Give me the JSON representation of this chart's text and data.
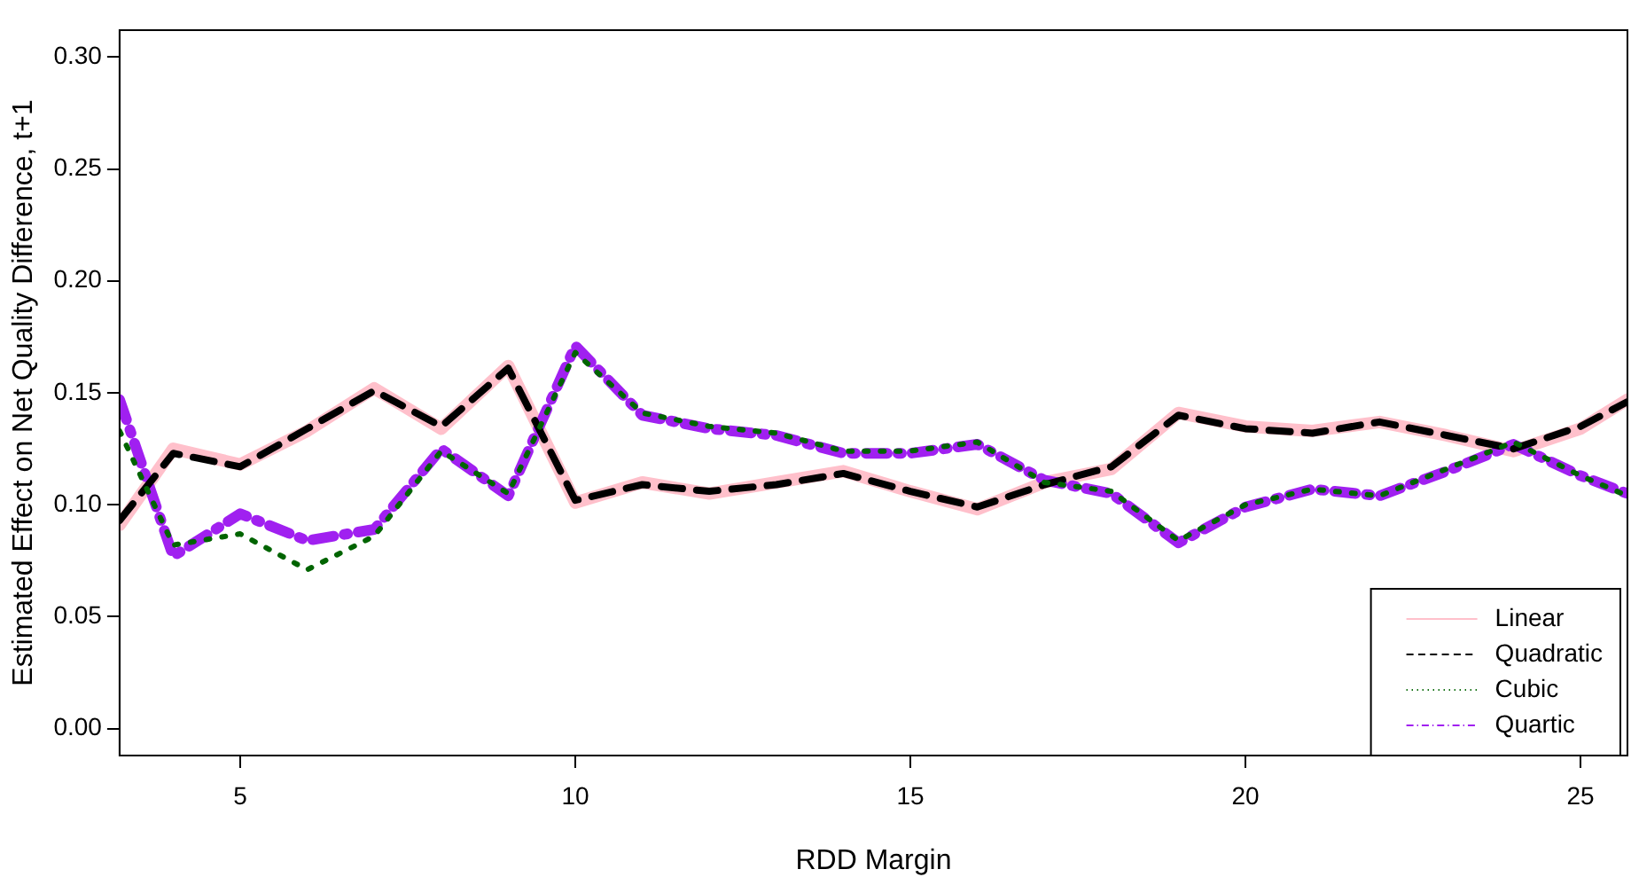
{
  "chart_data": {
    "type": "line",
    "xlabel": "RDD Margin",
    "ylabel": "Estimated Effect on Net Quality Difference, t+1",
    "x": [
      3.2,
      4,
      5,
      6,
      7,
      8,
      9,
      10,
      11,
      12,
      13,
      14,
      15,
      16,
      17,
      18,
      19,
      20,
      21,
      22,
      23,
      24,
      25,
      25.7
    ],
    "series": [
      {
        "name": "Linear",
        "color": "#ffc0cb",
        "line_style": "solid",
        "values": [
          0.091,
          0.125,
          0.118,
          0.133,
          0.152,
          0.134,
          0.162,
          0.101,
          0.11,
          0.105,
          0.11,
          0.115,
          0.106,
          0.098,
          0.11,
          0.116,
          0.141,
          0.135,
          0.133,
          0.137,
          0.131,
          0.124,
          0.134,
          0.147
        ]
      },
      {
        "name": "Quadratic",
        "color": "#000000",
        "line_style": "dashed",
        "values": [
          0.093,
          0.123,
          0.117,
          0.134,
          0.151,
          0.135,
          0.161,
          0.102,
          0.109,
          0.106,
          0.109,
          0.114,
          0.106,
          0.099,
          0.109,
          0.117,
          0.14,
          0.134,
          0.132,
          0.137,
          0.131,
          0.125,
          0.135,
          0.146
        ]
      },
      {
        "name": "Cubic",
        "color": "#006400",
        "line_style": "dotted",
        "values": [
          0.133,
          0.082,
          0.087,
          0.071,
          0.086,
          0.124,
          0.105,
          0.168,
          0.141,
          0.135,
          0.132,
          0.124,
          0.124,
          0.128,
          0.11,
          0.106,
          0.084,
          0.1,
          0.107,
          0.104,
          0.116,
          0.128,
          0.113,
          0.104
        ]
      },
      {
        "name": "Quartic",
        "color": "#a020f0",
        "line_style": "dashdot",
        "values": [
          0.147,
          0.077,
          0.096,
          0.084,
          0.089,
          0.125,
          0.104,
          0.171,
          0.14,
          0.134,
          0.131,
          0.123,
          0.123,
          0.127,
          0.111,
          0.105,
          0.083,
          0.099,
          0.107,
          0.104,
          0.115,
          0.127,
          0.113,
          0.105
        ]
      }
    ],
    "xlim": [
      3.2,
      25.7
    ],
    "xticks": [
      5,
      10,
      15,
      20,
      25
    ],
    "ylim": [
      -0.012,
      0.312
    ],
    "yticks": [
      {
        "value": 0,
        "label": "0.00"
      },
      {
        "value": 0.05,
        "label": "0.05"
      },
      {
        "value": 0.1,
        "label": "0.10"
      },
      {
        "value": 0.15,
        "label": "0.15"
      },
      {
        "value": 0.2,
        "label": "0.20"
      },
      {
        "value": 0.25,
        "label": "0.25"
      },
      {
        "value": 0.3,
        "label": "0.30"
      }
    ],
    "grid": false,
    "legend": "bottom right"
  }
}
